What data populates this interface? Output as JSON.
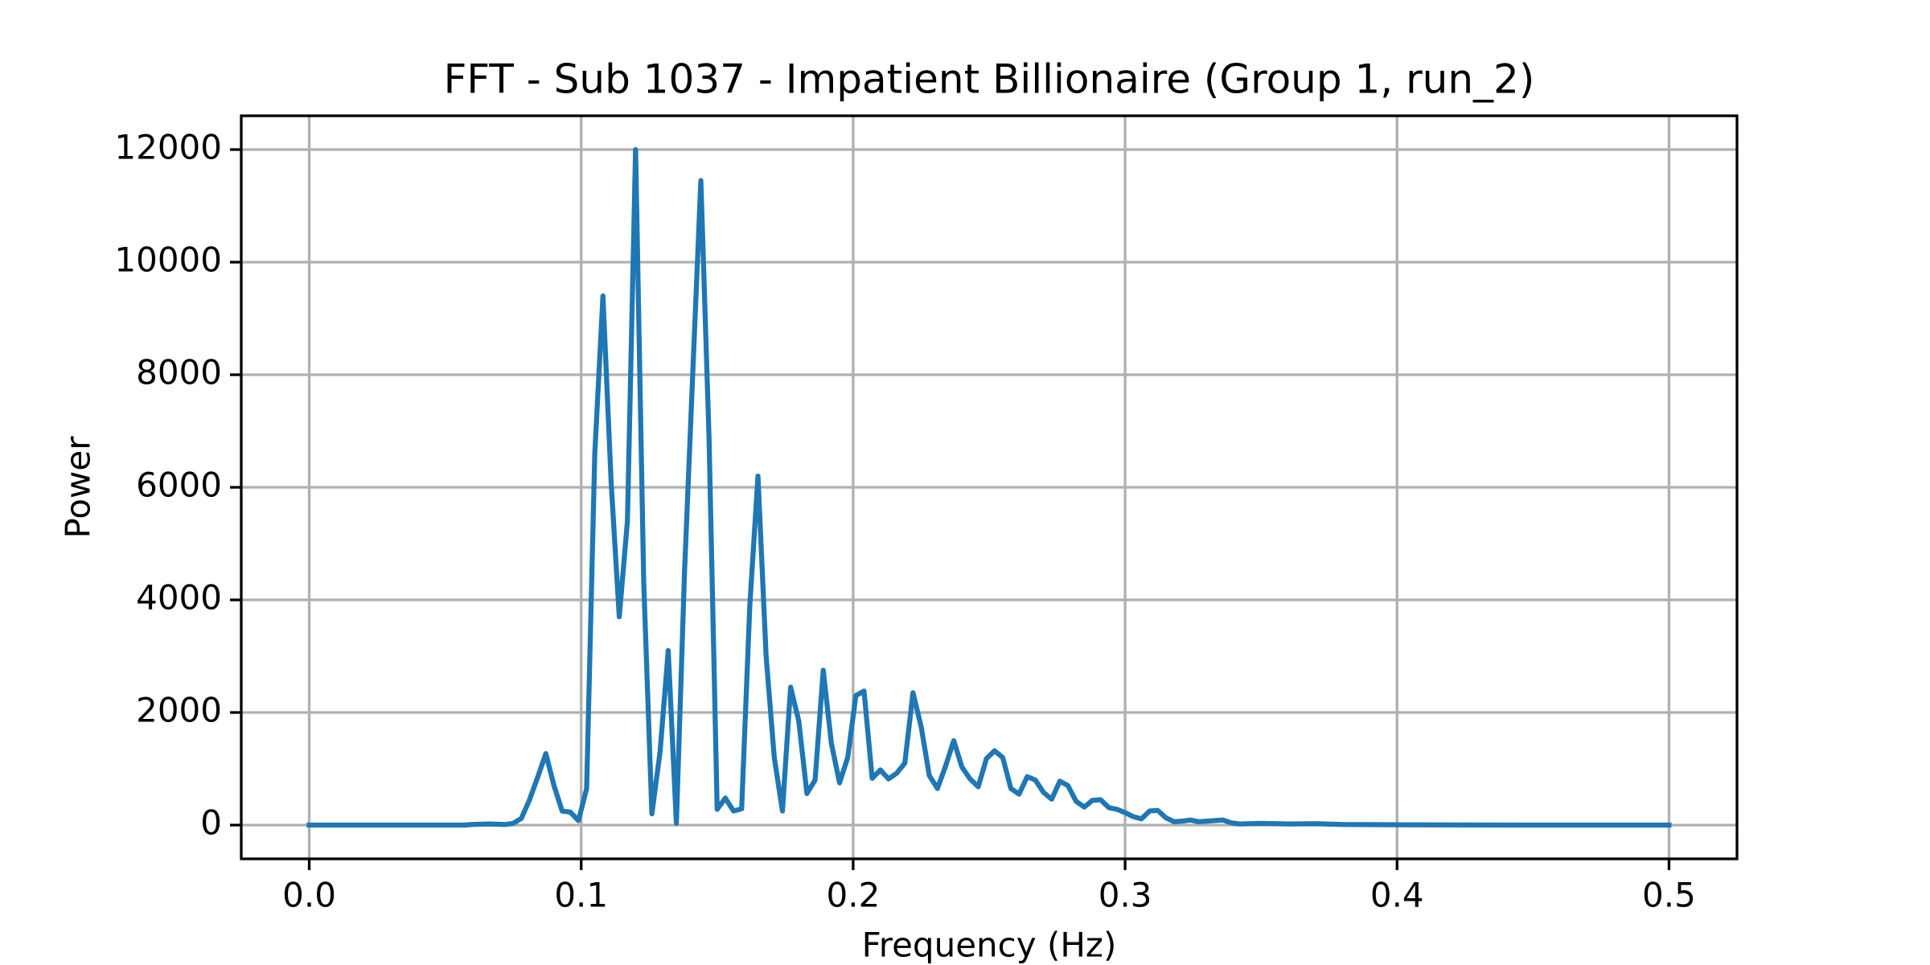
{
  "chart_data": {
    "type": "line",
    "title": "FFT - Sub 1037 - Impatient Billionaire (Group 1, run_2)",
    "x_label": "Frequency (Hz)",
    "y_label": "Power",
    "xlim": [
      -0.025,
      0.525
    ],
    "ylim": [
      -600,
      12600
    ],
    "xticks": [
      {
        "value": 0,
        "label": "0.0"
      },
      0.1,
      0.2,
      0.3,
      0.4,
      0.5
    ],
    "yticks": [
      0,
      2000,
      4000,
      6000,
      8000,
      10000,
      12000
    ],
    "grid": true,
    "series": [
      {
        "color": "#1f77b4",
        "x": [
          0,
          0.03,
          0.057,
          0.06,
          0.066,
          0.072,
          0.075,
          0.078,
          0.081,
          0.084,
          0.087,
          0.09,
          0.093,
          0.096,
          0.099,
          0.102,
          0.105,
          0.108,
          0.111,
          0.114,
          0.117,
          0.12,
          0.123,
          0.126,
          0.129,
          0.132,
          0.135,
          0.138,
          0.141,
          0.144,
          0.147,
          0.15,
          0.153,
          0.156,
          0.159,
          0.162,
          0.165,
          0.168,
          0.171,
          0.174,
          0.177,
          0.18,
          0.183,
          0.186,
          0.189,
          0.192,
          0.195,
          0.198,
          0.201,
          0.204,
          0.207,
          0.21,
          0.213,
          0.216,
          0.219,
          0.222,
          0.225,
          0.228,
          0.231,
          0.234,
          0.237,
          0.24,
          0.243,
          0.246,
          0.249,
          0.252,
          0.255,
          0.258,
          0.261,
          0.264,
          0.267,
          0.27,
          0.273,
          0.276,
          0.279,
          0.282,
          0.285,
          0.288,
          0.291,
          0.294,
          0.297,
          0.3,
          0.303,
          0.306,
          0.309,
          0.312,
          0.315,
          0.318,
          0.321,
          0.324,
          0.327,
          0.33,
          0.333,
          0.336,
          0.339,
          0.342,
          0.35,
          0.36,
          0.37,
          0.38,
          0.4,
          0.45,
          0.5
        ],
        "values": [
          0,
          0,
          0,
          10,
          20,
          10,
          30,
          120,
          450,
          850,
          1270,
          700,
          250,
          230,
          80,
          650,
          6600,
          9400,
          6100,
          3700,
          5400,
          12000,
          4300,
          200,
          1300,
          3100,
          30,
          4500,
          8000,
          11450,
          6900,
          280,
          480,
          250,
          290,
          3900,
          6200,
          3000,
          1200,
          250,
          2450,
          1850,
          560,
          800,
          2750,
          1450,
          750,
          1200,
          2300,
          2380,
          830,
          980,
          820,
          920,
          1100,
          2350,
          1750,
          880,
          650,
          1050,
          1500,
          1030,
          820,
          680,
          1180,
          1320,
          1200,
          650,
          550,
          860,
          800,
          580,
          460,
          780,
          700,
          420,
          320,
          440,
          450,
          310,
          280,
          220,
          150,
          110,
          250,
          260,
          130,
          60,
          70,
          90,
          60,
          70,
          80,
          90,
          40,
          20,
          30,
          20,
          25,
          10,
          5,
          0,
          0
        ]
      }
    ]
  }
}
